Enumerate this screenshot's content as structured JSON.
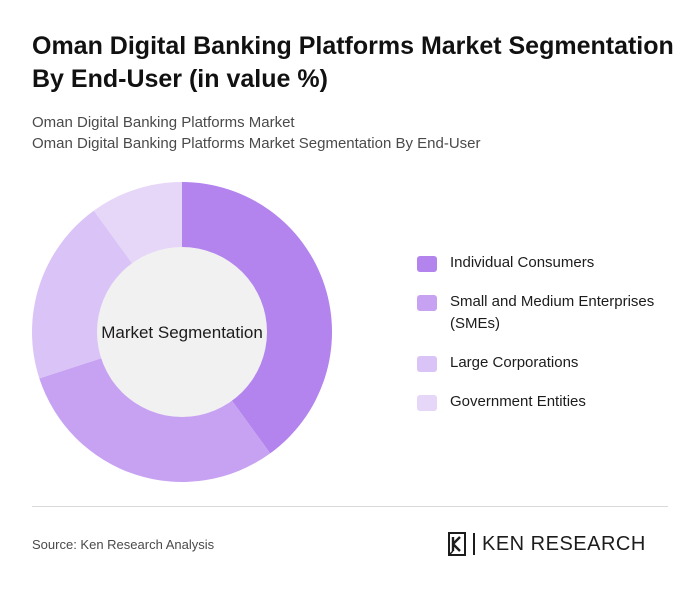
{
  "title": "Oman Digital Banking Platforms Market Segmentation By End-User (in value %)",
  "subtitle_lines": [
    "Oman Digital Banking Platforms Market",
    "Oman Digital Banking Platforms Market Segmentation By End-User"
  ],
  "chart_data": {
    "type": "pie",
    "variant": "donut",
    "center_label": "Market Segmentation",
    "categories": [
      "Individual Consumers",
      "Small and Medium Enterprises (SMEs)",
      "Large Corporations",
      "Government Entities"
    ],
    "values": [
      40,
      30,
      20,
      10
    ],
    "colors": [
      "#b383ee",
      "#c7a2f2",
      "#dac3f6",
      "#e6d6f8"
    ],
    "legend_position": "right",
    "start_angle_deg": 0,
    "direction": "clockwise"
  },
  "source": "Source: Ken Research Analysis",
  "brand": {
    "name": "KEN RESEARCH",
    "logo_icon": "ken-research-k-logo-icon"
  }
}
